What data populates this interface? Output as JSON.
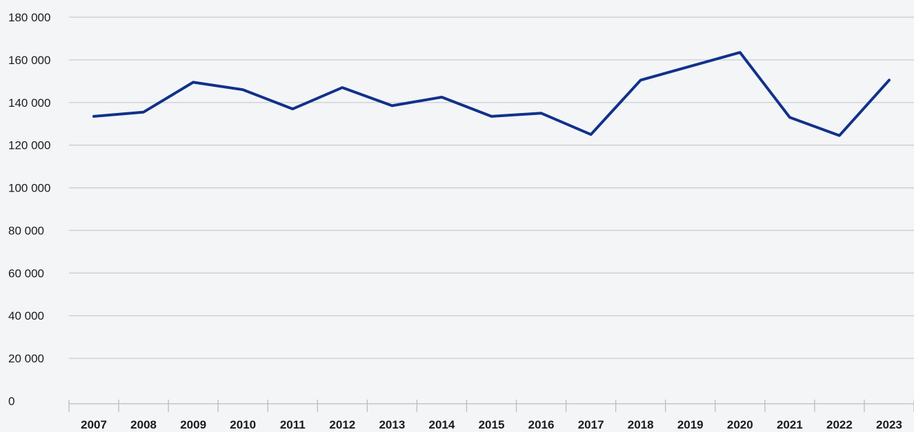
{
  "chart_data": {
    "type": "line",
    "title": "",
    "xlabel": "",
    "ylabel": "",
    "categories": [
      "2007",
      "2008",
      "2009",
      "2010",
      "2011",
      "2012",
      "2013",
      "2014",
      "2015",
      "2016",
      "2017",
      "2018",
      "2019",
      "2020",
      "2021",
      "2022",
      "2023"
    ],
    "series": [
      {
        "values": [
          133500,
          135500,
          149500,
          146000,
          137000,
          147000,
          138500,
          142500,
          133500,
          135000,
          125000,
          150500,
          157000,
          163500,
          133000,
          124500,
          150500
        ],
        "color": "#11318a"
      }
    ],
    "ylim": [
      0,
      180000
    ],
    "yticks": [
      0,
      20000,
      40000,
      60000,
      80000,
      100000,
      120000,
      140000,
      160000,
      180000
    ],
    "ytick_labels": [
      "0",
      "20 000",
      "40 000",
      "60 000",
      "80 000",
      "100 000",
      "120 000",
      "140 000",
      "160 000",
      "180 000"
    ],
    "grid": true,
    "legend": "none"
  }
}
